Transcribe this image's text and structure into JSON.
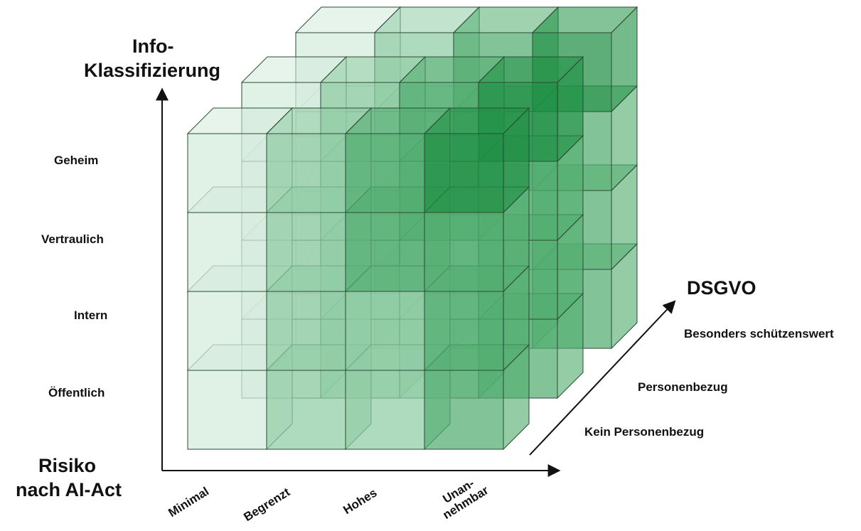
{
  "y_axis": {
    "title_line1": "Info-",
    "title_line2": "Klassifizierung",
    "levels": [
      "Öffentlich",
      "Intern",
      "Vertraulich",
      "Geheim"
    ]
  },
  "x_axis": {
    "title_line1": "Risiko",
    "title_line2": "nach AI-Act",
    "categories": [
      "Minimal",
      "Begrenzt",
      "Hohes",
      "Unan-",
      "nehmbar"
    ]
  },
  "z_axis": {
    "title": "DSGVO",
    "levels": [
      "Kein Personenbezug",
      "Personenbezug",
      "Besonders schützenswert"
    ]
  },
  "colors": {
    "light": "#d4ebdd",
    "medium": "#8fcca4",
    "dark": "#52ad70",
    "darkest": "#1f8f44",
    "edge": "#2b4a36",
    "axis": "#111111"
  }
}
